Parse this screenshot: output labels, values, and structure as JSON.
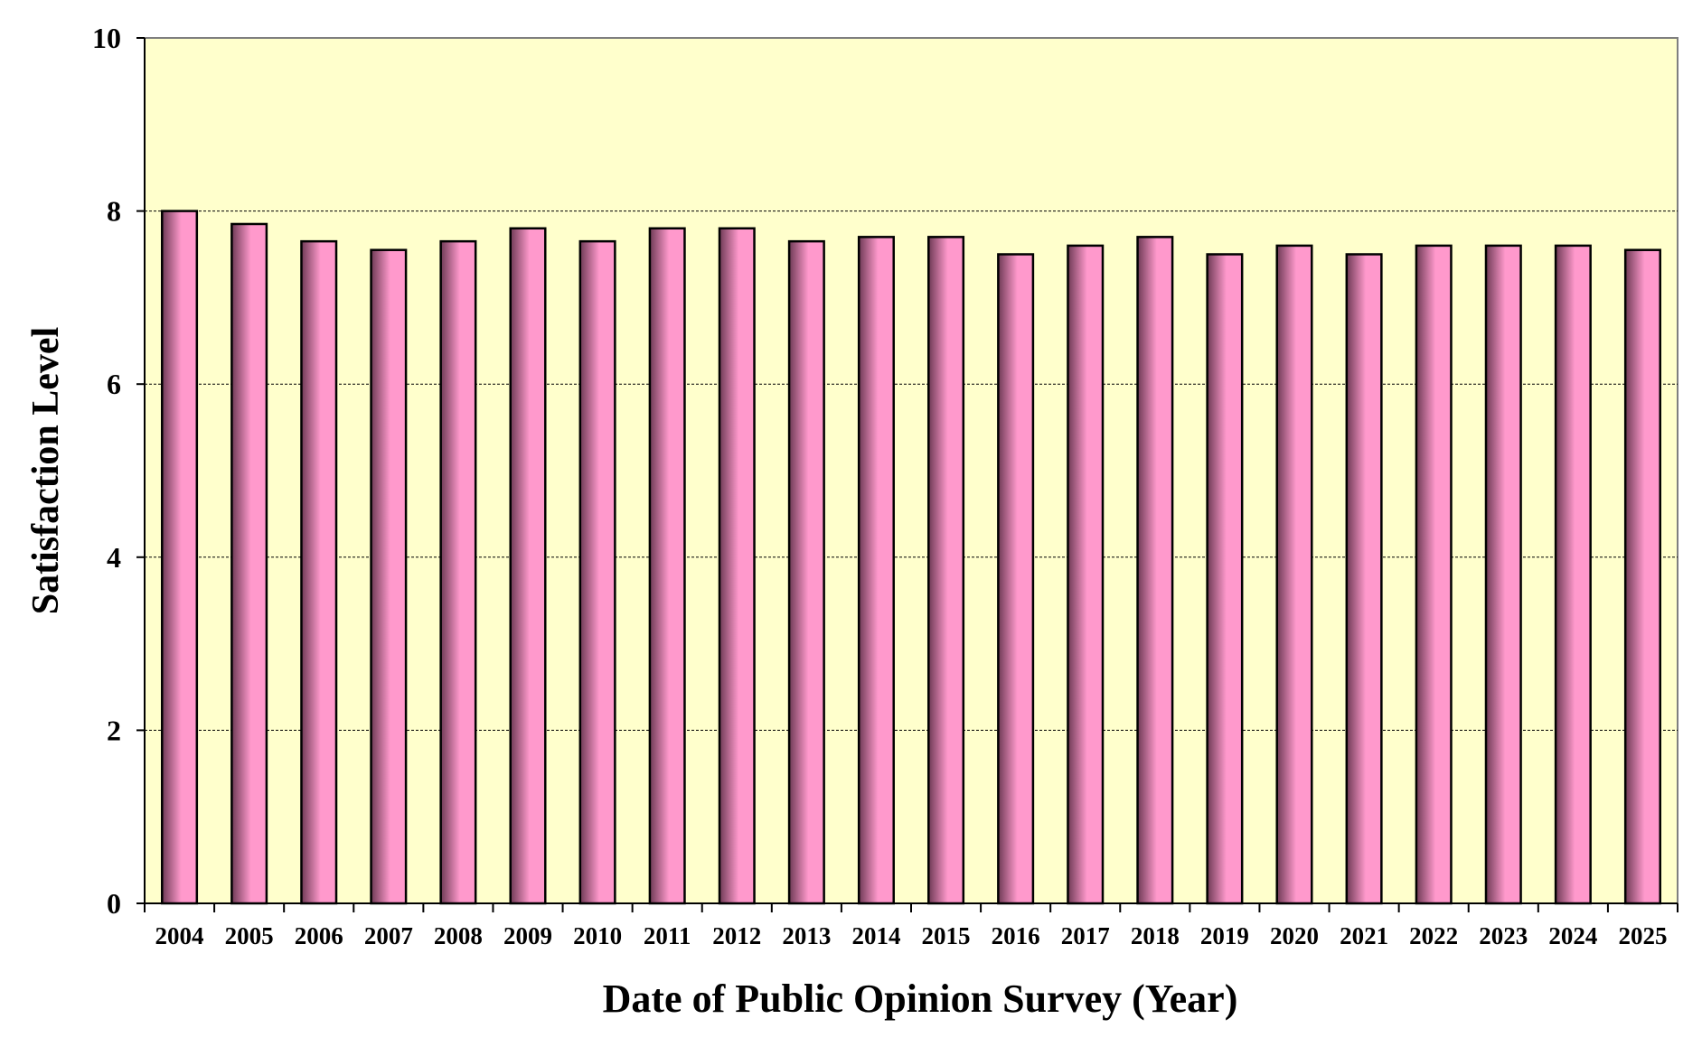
{
  "chart_data": {
    "type": "bar",
    "title": "",
    "xlabel": "Date of Public Opinion Survey (Year)",
    "ylabel": "Satisfaction Level",
    "ylim": [
      0,
      10
    ],
    "yticks": [
      "0",
      "2",
      "4",
      "6",
      "8",
      "10"
    ],
    "categories": [
      "2004",
      "2005",
      "2006",
      "2007",
      "2008",
      "2009",
      "2010",
      "2011",
      "2012",
      "2013",
      "2014",
      "2015",
      "2016",
      "2017",
      "2018",
      "2019",
      "2020",
      "2021",
      "2022",
      "2023",
      "2024",
      "2025"
    ],
    "values": [
      8.0,
      7.85,
      7.65,
      7.55,
      7.65,
      7.8,
      7.65,
      7.8,
      7.8,
      7.65,
      7.7,
      7.7,
      7.5,
      7.6,
      7.7,
      7.5,
      7.6,
      7.5,
      7.6,
      7.6,
      7.6,
      7.55
    ],
    "grid": true,
    "legend": "none",
    "colors": {
      "plot_background": "#FFFFCC",
      "bar_fill_light": "#FF99CC",
      "bar_fill_dark": "#6E3A55",
      "bar_edge": "#000000",
      "grid": "#000000"
    }
  }
}
